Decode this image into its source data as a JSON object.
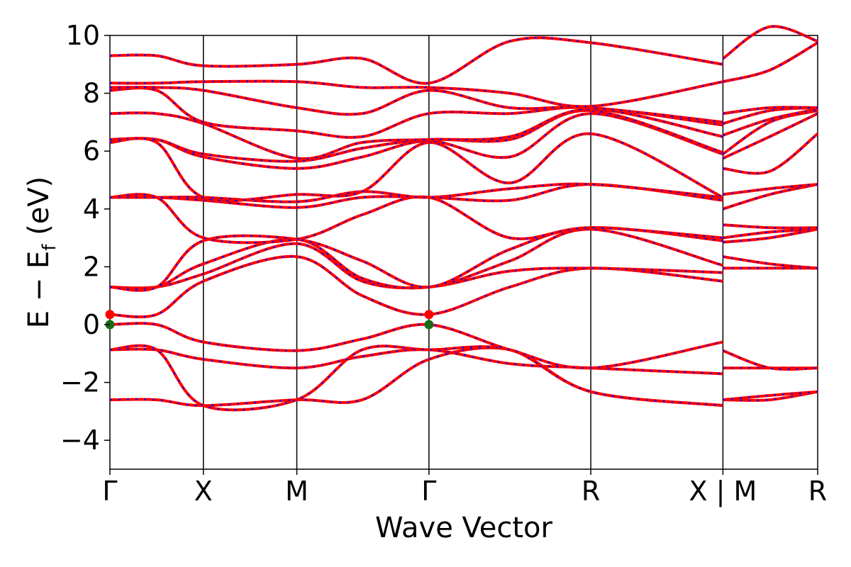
{
  "chart_data": {
    "type": "line",
    "xlabel": "Wave Vector",
    "ylabel_main": "E − E",
    "ylabel_sub": "f",
    "ylabel_unit": " (eV)",
    "ylim": [
      -5,
      10
    ],
    "yticks": [
      -4,
      -2,
      0,
      2,
      4,
      6,
      8,
      10
    ],
    "ytick_labels": [
      "−4",
      "−2",
      "0",
      "2",
      "4",
      "6",
      "8",
      "10"
    ],
    "k_path": [
      "Γ",
      "X",
      "M",
      "Γ",
      "R",
      "X",
      "M",
      "R"
    ],
    "k_tick_positions": [
      0,
      0.5,
      1.0,
      1.707,
      2.573,
      3.28,
      3.28,
      3.787
    ],
    "k_tick_labels": [
      "Γ",
      "X",
      "M",
      "Γ",
      "R",
      "X | M",
      "R"
    ],
    "k_tick_label_positions": [
      0,
      0.5,
      1.0,
      1.707,
      2.573,
      3.28,
      3.787
    ],
    "xlim": [
      0,
      3.787
    ],
    "grid": false,
    "colors": {
      "bands_primary": "#ff0000",
      "bands_secondary": "#0000ff",
      "special_points": "#1a6b1a",
      "special_points_edge": "#ff0000"
    },
    "bands": [
      [
        -2.6,
        -2.6,
        -2.8,
        -2.6,
        -2.6,
        -1.2,
        -0.87,
        -2.32,
        -2.8,
        -2.6,
        -2.6,
        -2.32
      ],
      [
        -0.87,
        -0.87,
        -2.8,
        -2.6,
        -0.87,
        -0.87,
        -0.87,
        -2.32,
        -2.8,
        -2.6,
        -2.45,
        -2.32
      ],
      [
        -0.87,
        -0.87,
        -1.2,
        -1.5,
        -1.1,
        -0.87,
        -1.35,
        -1.5,
        -1.7,
        -1.5,
        -1.5,
        -1.5
      ],
      [
        0.0,
        0.0,
        -0.6,
        -0.9,
        -0.5,
        0.0,
        -0.87,
        -1.5,
        -0.6,
        -0.9,
        -1.5,
        -1.5
      ],
      [
        0.35,
        0.35,
        1.5,
        2.35,
        1.0,
        0.35,
        1.3,
        1.95,
        1.5,
        1.95,
        1.95,
        1.95
      ],
      [
        1.3,
        1.3,
        1.75,
        2.8,
        1.5,
        1.3,
        1.85,
        1.95,
        1.8,
        2.35,
        2.1,
        1.95
      ],
      [
        1.3,
        1.3,
        2.1,
        2.95,
        1.6,
        1.3,
        2.2,
        3.3,
        2.05,
        2.85,
        3.0,
        3.3
      ],
      [
        1.3,
        1.3,
        2.9,
        2.95,
        2.2,
        1.3,
        2.6,
        3.35,
        2.9,
        3.0,
        3.2,
        3.3
      ],
      [
        4.4,
        4.4,
        3.0,
        2.95,
        3.8,
        4.4,
        3.0,
        3.35,
        3.0,
        3.45,
        3.35,
        3.35
      ],
      [
        4.4,
        4.4,
        4.3,
        4.05,
        4.4,
        4.4,
        4.3,
        4.85,
        4.3,
        4.0,
        4.5,
        4.85
      ],
      [
        4.4,
        4.4,
        4.4,
        4.25,
        4.6,
        4.4,
        4.7,
        4.85,
        4.4,
        4.5,
        4.7,
        4.85
      ],
      [
        6.3,
        6.3,
        4.4,
        4.5,
        4.6,
        6.3,
        4.9,
        6.6,
        4.4,
        5.4,
        5.3,
        6.6
      ],
      [
        6.4,
        6.4,
        5.8,
        5.4,
        5.8,
        6.35,
        5.8,
        7.3,
        5.9,
        5.75,
        6.5,
        7.3
      ],
      [
        6.4,
        6.4,
        5.9,
        5.65,
        6.1,
        6.4,
        6.4,
        7.4,
        5.95,
        5.9,
        7.0,
        7.4
      ],
      [
        7.3,
        7.3,
        6.95,
        5.75,
        6.3,
        6.4,
        6.5,
        7.45,
        6.5,
        6.55,
        7.1,
        7.45
      ],
      [
        8.1,
        8.1,
        7.0,
        6.7,
        6.5,
        7.3,
        7.3,
        7.5,
        6.9,
        6.95,
        7.4,
        7.5
      ],
      [
        8.2,
        8.2,
        8.1,
        7.5,
        7.3,
        8.1,
        7.5,
        7.5,
        7.0,
        7.3,
        7.5,
        7.5
      ],
      [
        8.35,
        8.35,
        8.4,
        8.4,
        8.2,
        8.2,
        8.0,
        7.55,
        8.4,
        8.4,
        8.8,
        9.75
      ],
      [
        9.3,
        9.3,
        8.95,
        9.0,
        9.2,
        8.35,
        9.8,
        9.75,
        9.0,
        9.2,
        10.3,
        9.8
      ]
    ],
    "band_sample_k": [
      0,
      0.25,
      0.5,
      1.0,
      1.35,
      1.707,
      2.14,
      2.573,
      3.28,
      3.28,
      3.53,
      3.787
    ],
    "special_markers": [
      {
        "k": 0,
        "y": 0.0,
        "color": "#1a6b1a"
      },
      {
        "k": 0,
        "y": 0.35,
        "color": "#ff0000"
      },
      {
        "k": 1.707,
        "y": 0.0,
        "color": "#1a6b1a"
      },
      {
        "k": 1.707,
        "y": 0.35,
        "color": "#ff0000"
      }
    ]
  }
}
